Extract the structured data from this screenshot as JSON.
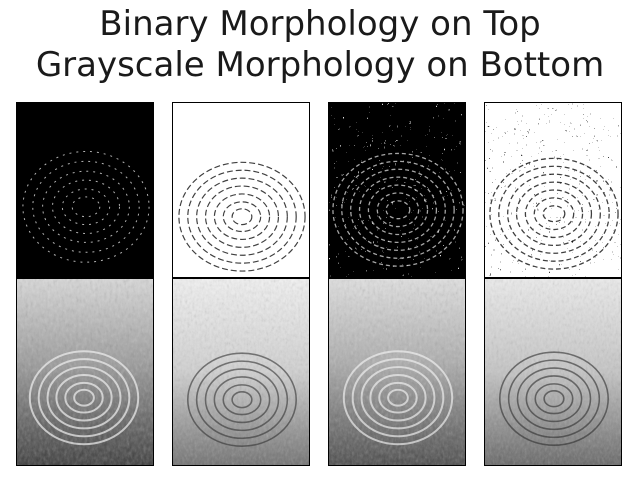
{
  "figure": {
    "title_line1": "Binary Morphology on Top",
    "title_line2": "Grayscale Morphology on Bottom"
  },
  "panels": [
    {
      "row": "top",
      "index": 1,
      "style": "binary-dark"
    },
    {
      "row": "top",
      "index": 2,
      "style": "binary-light"
    },
    {
      "row": "top",
      "index": 3,
      "style": "binary-mid-dark"
    },
    {
      "row": "top",
      "index": 4,
      "style": "binary-mid-light"
    },
    {
      "row": "bottom",
      "index": 1,
      "style": "gray-dark"
    },
    {
      "row": "bottom",
      "index": 2,
      "style": "gray-light"
    },
    {
      "row": "bottom",
      "index": 3,
      "style": "gray-mid"
    },
    {
      "row": "bottom",
      "index": 4,
      "style": "gray-light-2"
    }
  ],
  "colors": {
    "black": "#000000",
    "white": "#ffffff",
    "gray": "#888888"
  }
}
